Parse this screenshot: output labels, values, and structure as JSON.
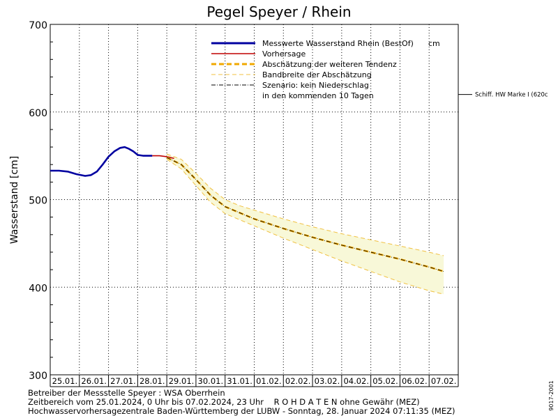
{
  "chart_data": {
    "type": "line",
    "title": "Pegel Speyer / Rhein",
    "ylabel": "Wasserstand [cm]",
    "ylim": [
      300,
      700
    ],
    "yticks": [
      300,
      400,
      500,
      600,
      700
    ],
    "x_range_days": [
      0,
      14
    ],
    "day_labels": [
      "25.01.",
      "26.01.",
      "27.01.",
      "28.01.",
      "29.01.",
      "30.01.",
      "31.01.",
      "01.02.",
      "02.02.",
      "03.02.",
      "04.02.",
      "05.02.",
      "06.02.",
      "07.02."
    ],
    "grid": true,
    "legend_position": "top-right",
    "legend": {
      "measured": "Messwerte Wasserstand Rhein (BestOf)",
      "unit": "cm",
      "forecast": "Vorhersage",
      "estimate": "Abschätzung der weiteren Tendenz",
      "band": "Bandbreite der Abschätzung",
      "scenario_line1": "Szenario: kein Niederschlag",
      "scenario_line2": "in den kommenden 10 Tagen"
    },
    "reference_line": {
      "label": "Schiff. HW Marke I (620c",
      "value": 620
    },
    "series": [
      {
        "key": "measured",
        "color": "#0000a0",
        "x": [
          0,
          0.3,
          0.6,
          0.9,
          1.2,
          1.4,
          1.6,
          1.8,
          2.0,
          2.2,
          2.4,
          2.55,
          2.7,
          2.85,
          3.0,
          3.2,
          3.5
        ],
        "y": [
          533,
          533,
          532,
          529,
          527,
          528,
          532,
          540,
          549,
          555,
          559,
          560,
          558,
          555,
          551,
          550,
          550
        ]
      },
      {
        "key": "forecast",
        "color": "#c00000",
        "x": [
          3.5,
          3.75,
          4.0,
          4.25
        ],
        "y": [
          550,
          550,
          549,
          547
        ]
      },
      {
        "key": "estimate",
        "color": "#f0a800",
        "x": [
          4.0,
          4.5,
          5.0,
          5.5,
          6.0,
          6.5,
          7.0,
          8.0,
          9.0,
          10.0,
          11.0,
          12.0,
          13.0,
          13.5
        ],
        "y": [
          548,
          540,
          523,
          505,
          492,
          485,
          478,
          467,
          457,
          448,
          440,
          432,
          423,
          418
        ]
      },
      {
        "key": "band_upper",
        "color": "#f0c040",
        "x": [
          4.0,
          4.5,
          5.0,
          5.5,
          6.0,
          6.5,
          7.0,
          8.0,
          9.0,
          10.0,
          11.0,
          12.0,
          13.0,
          13.5
        ],
        "y": [
          552,
          546,
          530,
          513,
          500,
          493,
          488,
          478,
          469,
          461,
          454,
          447,
          440,
          436
        ]
      },
      {
        "key": "band_lower",
        "color": "#f0c040",
        "x": [
          4.0,
          4.5,
          5.0,
          5.5,
          6.0,
          6.5,
          7.0,
          8.0,
          9.0,
          10.0,
          11.0,
          12.0,
          13.0,
          13.5
        ],
        "y": [
          546,
          535,
          516,
          497,
          484,
          477,
          470,
          456,
          443,
          430,
          418,
          406,
          396,
          392
        ]
      }
    ]
  },
  "footer": {
    "line1": "Betreiber der Messstelle Speyer : WSA Oberrhein",
    "line2": "Zeitbereich vom 25.01.2024, 0 Uhr bis 07.02.2024, 23 Uhr    R O H D A T E N ohne Gewähr (MEZ)",
    "line3": "Hochwasservorhersagezentrale Baden-Württemberg der LUBW - Sonntag, 28. Januar 2024 07:11:35 (MEZ)",
    "side_code": "9017-2001"
  },
  "colors": {
    "band_fill": "#f8f8d8",
    "grid": "#000000"
  }
}
